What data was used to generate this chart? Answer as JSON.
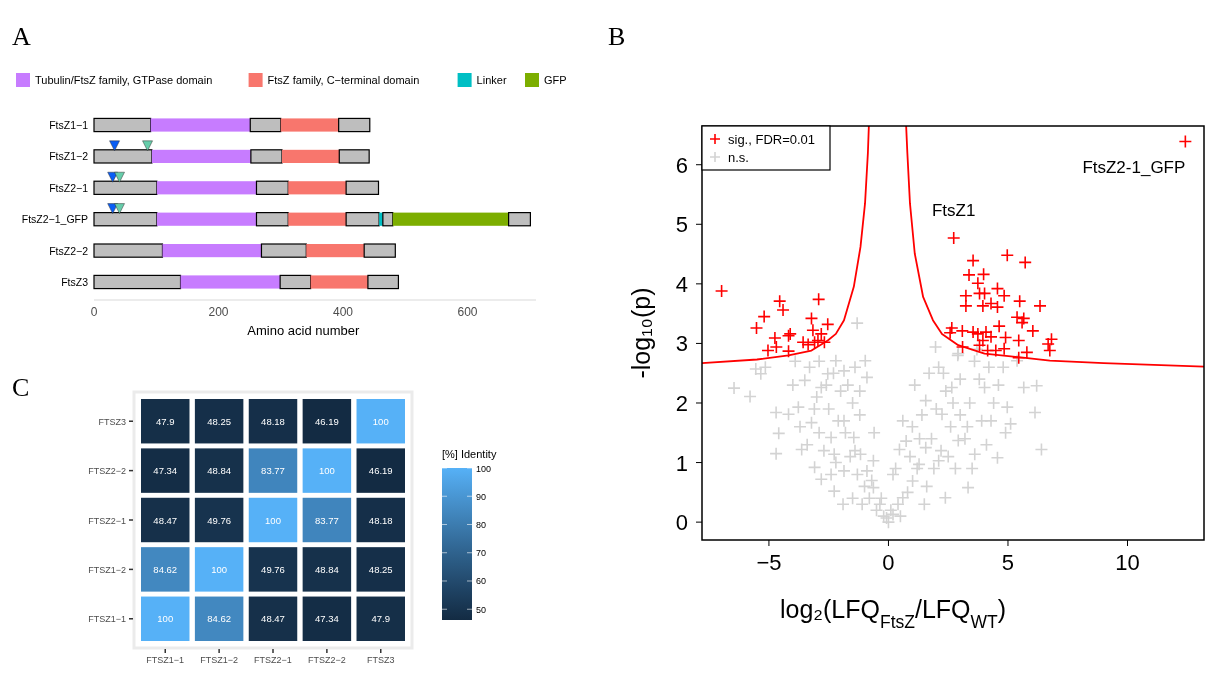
{
  "chart_data": [
    {
      "type": "bar",
      "title": "A",
      "orientation": "horizontal",
      "stacked": true,
      "categories": [
        "FtsZ1−1",
        "FtsZ1−2",
        "FtsZ2−1",
        "FtsZ2−1_GFP",
        "FtsZ2−2",
        "FtsZ3"
      ],
      "xlabel": "Amino acid number",
      "xlim": [
        0,
        710
      ],
      "xticks": [
        0,
        200,
        400,
        600
      ],
      "legend": "top",
      "grid": false,
      "series": [
        {
          "color": "#bebebe",
          "values": [
            91,
            93,
            101,
            101,
            110,
            139
          ]
        },
        {
          "name": "Tubulin/FtsZ family, GTPase domain",
          "color": "#c77cff",
          "values": [
            160,
            159,
            160,
            160,
            159,
            160
          ]
        },
        {
          "color": "#bebebe",
          "values": [
            49,
            50,
            51,
            51,
            72,
            49
          ]
        },
        {
          "name": "FtsZ family, C−terminal domain",
          "color": "#f8766d",
          "values": [
            93,
            92,
            93,
            93,
            93,
            92
          ]
        },
        {
          "color": "#bebebe",
          "values": [
            50,
            48,
            52,
            53,
            50,
            49
          ]
        },
        {
          "name": "Linker",
          "color": "#00bfc4",
          "values": [
            null,
            null,
            null,
            6,
            null,
            null
          ]
        },
        {
          "color": "#bebebe",
          "values": [
            null,
            null,
            null,
            16,
            null,
            null
          ]
        },
        {
          "name": "GFP",
          "color": "#7cae00",
          "values": [
            null,
            null,
            null,
            186,
            null,
            null
          ]
        },
        {
          "color": "#bebebe",
          "values": [
            null,
            null,
            null,
            35,
            null,
            null
          ]
        },
        {
          "type": "scatter",
          "marker": "triangle",
          "color": "#0a5ef5",
          "values": [
            null,
            33,
            30,
            30,
            null,
            null
          ]
        },
        {
          "type": "scatter",
          "marker": "triangle",
          "color": "#66cdaa",
          "values": [
            null,
            86,
            41,
            41,
            null,
            null
          ]
        }
      ]
    },
    {
      "type": "scatter",
      "title": "B",
      "xlabel": "log₂(LFQ$_{FtsZ}$/LFQ$_{WT}$)",
      "ylabel": "-log₁₀(p)",
      "xlim": [
        -7.8,
        13.2
      ],
      "ylim": [
        -0.3,
        6.65
      ],
      "xticks": [
        {
          "value": -5,
          "label": "−5"
        },
        0,
        5,
        10
      ],
      "yticks": [
        0,
        1,
        2,
        3,
        4,
        5,
        6
      ],
      "grid": false,
      "legend": "top left",
      "annotations": [
        {
          "text": "FtsZ1",
          "x": 2.73,
          "y": 4.77
        },
        {
          "text": "FtsZ2-1_GFP",
          "x": 12.42,
          "y": 6.39
        }
      ],
      "series": [
        {
          "name": "n.s.",
          "color": "#d3d3d3",
          "marker": "cross",
          "x": [
            -3.3,
            -2.9,
            -2.3,
            -1.7,
            -1.4,
            -3.1,
            -2.7,
            -2.4,
            -1.5,
            -1.1,
            -0.7,
            -0.3,
            -2.1,
            -1.4,
            -1.2,
            -3.7,
            -4.0,
            -3.9,
            0.5,
            0.9,
            1.3,
            1.5,
            1.9,
            2.0,
            2.3,
            2.7,
            2.5,
            3.0,
            3.3,
            3.5,
            3.9,
            4.1,
            4.4,
            3.7,
            4.8,
            2.9,
            1.1,
            4.9,
            0.6,
            -0.6,
            -1.31,
            -6.46,
            -5.79,
            -5.55,
            -4.7,
            -4.7,
            -4.59,
            -4.18,
            -3.77,
            -3.63,
            -3.22,
            -2.81,
            -2.54,
            -2.2,
            -1.86,
            -0.97,
            -0.9,
            -3.09,
            -2.81,
            -2.27,
            -1.86,
            -2.4,
            -1.86,
            -1.45,
            -1.17,
            -0.9,
            -0.63,
            -0.36,
            -0.08,
            0.19,
            0.6,
            1.01,
            1.28,
            1.56,
            1.56,
            1.97,
            2.1,
            2.24,
            2.65,
            2.92,
            2.1,
            2.38,
            2.92,
            3.33,
            3.61,
            4.02,
            4.29,
            4.56,
            4.97,
            5.11,
            5.66,
            6.2,
            6.13,
            6.4,
            5.38,
            0.46,
            0.74,
            0.19,
            -0.63,
            -2.27,
            -3.5,
            -5.15,
            -5.34,
            -2.0,
            -1.5,
            -2.5,
            -1.8,
            -1.2,
            -2.2,
            -1.6,
            -1.0,
            -1.3,
            -0.8,
            -0.5,
            -1.9,
            -2.6,
            -3.0,
            -3.4,
            -2.9,
            1.0,
            1.4,
            1.8,
            2.2,
            2.6,
            3.0,
            3.4,
            3.8,
            1.2,
            0.8,
            0.4,
            1.6,
            2.8,
            3.2,
            4.2,
            4.6,
            3.6,
            2.4,
            1.7,
            0.3,
            0.1,
            -0.2,
            0.0
          ],
          "values": [
            2.6,
            2.7,
            2.5,
            2.3,
            2.6,
            1.9,
            1.2,
            0.8,
            0.4,
            0.3,
            0.7,
            0.4,
            1.7,
            1.2,
            2.2,
            1.6,
            2.3,
            2.7,
            0.1,
            1.1,
            1.4,
            0.3,
            0.9,
            1.9,
            2.5,
            2.0,
            1.1,
            2.4,
            1.6,
            0.9,
            1.7,
            1.3,
            2.0,
            2.9,
            2.6,
            2.8,
            2.3,
            1.5,
            1.7,
            1.5,
            3.34,
            2.25,
            2.11,
            2.57,
            1.84,
            1.15,
            1.49,
            1.81,
            1.93,
            1.22,
            1.67,
            2.26,
            2.49,
            2.71,
            2.54,
            2.71,
            2.43,
            0.92,
            0.72,
            0.52,
            0.86,
            1.42,
            1.7,
            1.42,
            1.14,
            0.86,
            0.58,
            0.3,
            0.07,
            0.13,
            0.41,
            0.69,
            0.97,
            1.25,
            2.04,
            2.94,
            2.6,
            1.81,
            2.26,
            2.83,
            1.03,
            0.41,
            1.37,
            0.58,
            1.14,
            2.26,
            1.7,
            1.08,
            1.93,
            1.65,
            2.26,
            2.29,
            1.84,
            1.22,
            2.71,
            1.22,
            1.36,
            0.8,
            1.03,
            1.14,
            2.38,
            2.6,
            2.49,
            2.2,
            2.0,
            1.9,
            1.5,
            1.8,
            1.0,
            1.1,
            0.6,
            0.8,
            0.4,
            0.2,
            0.3,
            2.3,
            2.1,
            1.3,
            1.5,
            1.6,
            1.8,
            1.4,
            1.2,
            1.6,
            1.8,
            2.0,
            2.4,
            0.9,
            0.5,
            0.3,
            0.6,
            0.9,
            1.4,
            2.6,
            2.3,
            2.7,
            2.2,
            2.5,
            0.9,
            0.2,
            0.1,
            0.0
          ]
        },
        {
          "name": "sig., FDR=0.01",
          "color": "#ff0000",
          "marker": "cross",
          "x": [
            -6.98,
            -4.55,
            -4.41,
            -5.2,
            -5.52,
            -4.75,
            -4.69,
            -5.04,
            -4.18,
            -4.11,
            -4.18,
            -3.57,
            -3.22,
            -3.16,
            -2.92,
            -2.81,
            -2.54,
            -3.36,
            -3.09,
            -2.68,
            -2.95,
            2.73,
            3.54,
            4.97,
            5.72,
            3.37,
            3.98,
            3.74,
            4.56,
            3.81,
            4.02,
            4.84,
            3.24,
            3.24,
            3.95,
            4.29,
            4.56,
            5.49,
            6.34,
            5.38,
            5.66,
            5.59,
            4.63,
            6.04,
            2.65,
            2.58,
            3.09,
            3.54,
            3.74,
            4.08,
            4.29,
            4.9,
            5.45,
            6.82,
            6.68,
            3.1,
            3.81,
            4.15,
            4.49,
            4.84,
            5.79,
            6.75,
            5.45,
            3.95,
            12.42
          ],
          "values": [
            3.88,
            3.71,
            3.56,
            3.45,
            3.26,
            3.09,
            2.94,
            2.88,
            3.13,
            3.16,
            2.87,
            3.02,
            3.42,
            3.22,
            3.74,
            3.16,
            3.32,
            2.98,
            3.02,
            3.02,
            3.05,
            4.77,
            4.39,
            4.48,
            4.36,
            4.15,
            4.16,
            4.01,
            3.92,
            3.84,
            3.84,
            3.8,
            3.8,
            3.63,
            3.63,
            3.67,
            3.61,
            3.71,
            3.63,
            3.44,
            3.42,
            3.35,
            3.29,
            3.21,
            3.26,
            3.18,
            3.21,
            3.19,
            3.16,
            3.19,
            3.11,
            3.1,
            3.05,
            3.07,
            2.99,
            2.94,
            2.97,
            2.88,
            2.88,
            2.91,
            2.85,
            2.88,
            2.76,
            3.05,
            6.39
          ]
        },
        {
          "type": "line",
          "color": "#ff0000",
          "x": [
            -7.8,
            -5.5,
            -4.18,
            -3.22,
            -2.54,
            -2.2,
            -1.86,
            -1.45,
            -1.17,
            -0.98,
            -0.86,
            -0.82
          ],
          "values": [
            2.67,
            2.73,
            2.8,
            2.88,
            3.05,
            3.16,
            3.39,
            3.95,
            4.62,
            5.35,
            6.2,
            6.65
          ]
        },
        {
          "type": "line",
          "color": "#ff0000",
          "x": [
            0.74,
            0.79,
            0.9,
            1.1,
            1.45,
            1.86,
            2.24,
            2.92,
            4.02,
            5.45,
            6.75,
            9.0,
            13.2
          ],
          "values": [
            6.65,
            6.2,
            5.35,
            4.51,
            3.78,
            3.39,
            3.16,
            2.97,
            2.83,
            2.77,
            2.71,
            2.67,
            2.61
          ]
        }
      ]
    },
    {
      "type": "heatmap",
      "title": "C",
      "categories": [
        "FTSZ1−1",
        "FTSZ1−2",
        "FTSZ2−1",
        "FTSZ2−2",
        "FTSZ3"
      ],
      "y_categories": [
        "FTSZ3",
        "FTSZ2−2",
        "FTSZ2−1",
        "FTSZ1−2",
        "FTSZ1−1"
      ],
      "clabel": "[%] Identity",
      "clim": [
        46.19,
        100
      ],
      "cticks": [
        50,
        60,
        70,
        80,
        90,
        100
      ],
      "data_labels": true,
      "cells": [
        [
          47.9,
          48.25,
          48.18,
          46.19,
          100
        ],
        [
          47.34,
          48.84,
          83.77,
          100,
          46.19
        ],
        [
          48.47,
          49.76,
          100,
          83.77,
          48.18
        ],
        [
          84.62,
          100,
          49.76,
          48.84,
          48.25
        ],
        [
          100,
          84.62,
          48.47,
          47.34,
          47.9
        ]
      ]
    }
  ]
}
